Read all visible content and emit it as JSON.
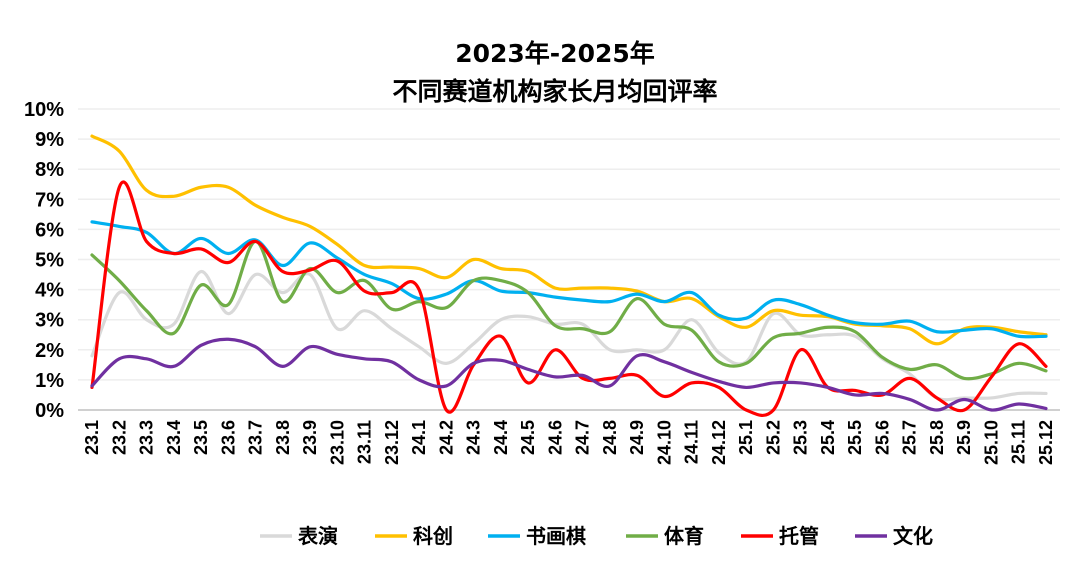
{
  "chart_data": {
    "type": "line",
    "title": [
      "2023年-2025年",
      "不同赛道机构家长月均回评率"
    ],
    "xlabel": "",
    "ylabel": "",
    "ylim": [
      0,
      10
    ],
    "y_ticks": [
      "0%",
      "1%",
      "2%",
      "3%",
      "4%",
      "5%",
      "6%",
      "7%",
      "8%",
      "9%",
      "10%"
    ],
    "grid": true,
    "legend_position": "bottom",
    "categories": [
      "23.1",
      "23.2",
      "23.3",
      "23.4",
      "23.5",
      "23.6",
      "23.7",
      "23.8",
      "23.9",
      "23.10",
      "23.11",
      "23.12",
      "24.1",
      "24.2",
      "24.3",
      "24.4",
      "24.5",
      "24.6",
      "24.7",
      "24.8",
      "24.9",
      "24.10",
      "24.11",
      "24.12",
      "25.1",
      "25.2",
      "25.3",
      "25.4",
      "25.5",
      "25.6",
      "25.7",
      "25.8",
      "25.9",
      "25.10",
      "25.11",
      "25.12"
    ],
    "series": [
      {
        "name": "表演",
        "color": "#D9D9D9",
        "values": [
          1.8,
          3.9,
          3.0,
          2.85,
          4.6,
          3.2,
          4.5,
          3.9,
          4.5,
          2.7,
          3.3,
          2.7,
          2.1,
          1.55,
          2.2,
          3.0,
          3.1,
          2.85,
          2.85,
          2.0,
          2.0,
          2.0,
          3.0,
          1.9,
          1.6,
          3.2,
          2.5,
          2.5,
          2.45,
          1.7,
          1.2,
          0.4,
          0.4,
          0.4,
          0.55,
          0.55
        ]
      },
      {
        "name": "科创",
        "color": "#FFC000",
        "values": [
          9.1,
          8.6,
          7.3,
          7.1,
          7.4,
          7.4,
          6.8,
          6.4,
          6.1,
          5.5,
          4.8,
          4.75,
          4.7,
          4.4,
          5.0,
          4.7,
          4.6,
          4.05,
          4.05,
          4.05,
          3.95,
          3.6,
          3.7,
          3.1,
          2.75,
          3.3,
          3.15,
          3.1,
          2.85,
          2.8,
          2.7,
          2.2,
          2.7,
          2.75,
          2.6,
          2.5
        ]
      },
      {
        "name": "书画棋",
        "color": "#00B0F0",
        "values": [
          6.25,
          6.1,
          5.9,
          5.2,
          5.7,
          5.2,
          5.65,
          4.8,
          5.55,
          5.05,
          4.5,
          4.2,
          3.7,
          3.85,
          4.3,
          3.95,
          3.9,
          3.75,
          3.65,
          3.6,
          3.85,
          3.6,
          3.9,
          3.15,
          3.05,
          3.65,
          3.5,
          3.15,
          2.9,
          2.85,
          2.95,
          2.6,
          2.65,
          2.7,
          2.45,
          2.45
        ]
      },
      {
        "name": "体育",
        "color": "#70AD47",
        "values": [
          5.15,
          4.3,
          3.3,
          2.55,
          4.15,
          3.5,
          5.6,
          3.6,
          4.7,
          3.9,
          4.3,
          3.35,
          3.6,
          3.4,
          4.3,
          4.3,
          3.9,
          2.8,
          2.7,
          2.6,
          3.7,
          2.85,
          2.65,
          1.6,
          1.55,
          2.4,
          2.55,
          2.75,
          2.6,
          1.75,
          1.35,
          1.5,
          1.05,
          1.2,
          1.55,
          1.3
        ]
      },
      {
        "name": "托管",
        "color": "#FF0000",
        "values": [
          0.75,
          7.4,
          5.6,
          5.2,
          5.35,
          4.9,
          5.6,
          4.6,
          4.65,
          4.95,
          3.95,
          3.9,
          4.0,
          0.0,
          1.5,
          2.45,
          0.9,
          2.0,
          1.05,
          1.05,
          1.15,
          0.45,
          0.9,
          0.75,
          0.0,
          0.0,
          2.0,
          0.75,
          0.65,
          0.5,
          1.05,
          0.4,
          0.0,
          1.1,
          2.2,
          1.45
        ]
      },
      {
        "name": "文化",
        "color": "#7030A0",
        "values": [
          0.8,
          1.7,
          1.7,
          1.45,
          2.15,
          2.35,
          2.1,
          1.45,
          2.1,
          1.85,
          1.7,
          1.6,
          1.0,
          0.8,
          1.55,
          1.65,
          1.35,
          1.1,
          1.15,
          0.8,
          1.8,
          1.6,
          1.25,
          0.95,
          0.75,
          0.9,
          0.9,
          0.75,
          0.5,
          0.55,
          0.35,
          0.0,
          0.35,
          0.0,
          0.2,
          0.05
        ]
      }
    ]
  }
}
